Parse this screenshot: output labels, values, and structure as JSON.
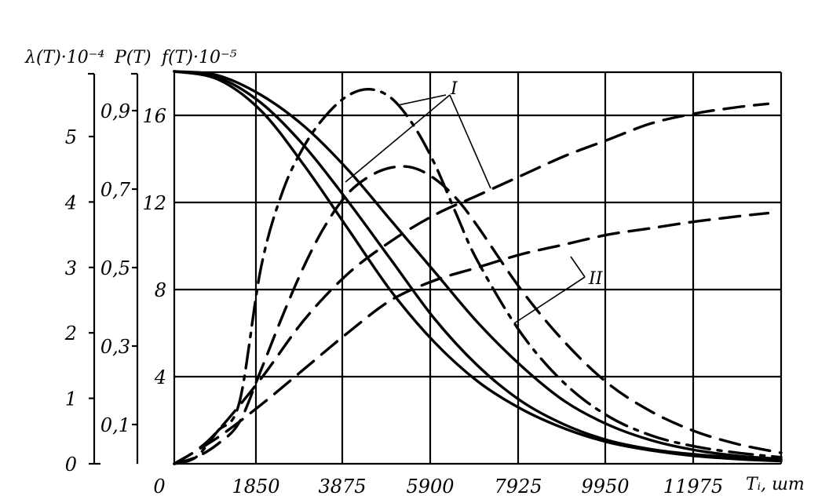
{
  "chart_data": {
    "type": "line",
    "axes": {
      "lambda": {
        "label": "λ(T)·10⁻⁴",
        "ticks": [
          0,
          1,
          2,
          3,
          4,
          5
        ]
      },
      "P": {
        "label": "P(T)",
        "ticks": [
          "0,1",
          "0,3",
          "0,5",
          "0,7",
          "0,9"
        ]
      },
      "f": {
        "label": "f(T)·10⁻⁵",
        "ticks": [
          4,
          8,
          12,
          16
        ]
      },
      "x": {
        "label": "Tᵢ, шт",
        "ticks": [
          "0",
          "1850",
          "3875",
          "5900",
          "7925",
          "9950",
          "11975"
        ],
        "range": [
          0,
          14000
        ]
      }
    },
    "annotations": [
      {
        "text": "I"
      },
      {
        "text": "II"
      }
    ],
    "series": [
      {
        "axis": "P",
        "style": "solid",
        "points": [
          [
            0,
            1.0
          ],
          [
            1000,
            0.99
          ],
          [
            2000,
            0.94
          ],
          [
            3000,
            0.86
          ],
          [
            4000,
            0.75
          ],
          [
            5000,
            0.62
          ],
          [
            6000,
            0.49
          ],
          [
            7000,
            0.36
          ],
          [
            8000,
            0.25
          ],
          [
            9000,
            0.16
          ],
          [
            10000,
            0.1
          ],
          [
            11000,
            0.06
          ],
          [
            12000,
            0.035
          ],
          [
            13000,
            0.02
          ],
          [
            14000,
            0.012
          ]
        ]
      },
      {
        "axis": "P",
        "style": "solid",
        "points": [
          [
            0,
            1.0
          ],
          [
            1000,
            0.985
          ],
          [
            2000,
            0.92
          ],
          [
            3000,
            0.81
          ],
          [
            4000,
            0.67
          ],
          [
            5000,
            0.52
          ],
          [
            6000,
            0.37
          ],
          [
            7000,
            0.25
          ],
          [
            8000,
            0.16
          ],
          [
            9000,
            0.1
          ],
          [
            10000,
            0.06
          ],
          [
            11000,
            0.037
          ],
          [
            12000,
            0.024
          ],
          [
            13000,
            0.016
          ],
          [
            14000,
            0.01
          ]
        ]
      },
      {
        "axis": "P",
        "style": "solid",
        "points": [
          [
            0,
            1.0
          ],
          [
            1000,
            0.98
          ],
          [
            2000,
            0.9
          ],
          [
            3000,
            0.76
          ],
          [
            4000,
            0.6
          ],
          [
            5000,
            0.44
          ],
          [
            6000,
            0.31
          ],
          [
            7000,
            0.21
          ],
          [
            8000,
            0.14
          ],
          [
            9000,
            0.09
          ],
          [
            10000,
            0.055
          ],
          [
            11000,
            0.034
          ],
          [
            12000,
            0.02
          ],
          [
            13000,
            0.012
          ],
          [
            14000,
            0.007
          ]
        ]
      },
      {
        "axis": "f",
        "style": "dashdot",
        "points": [
          [
            0,
            0
          ],
          [
            500,
            0.3
          ],
          [
            1000,
            1.5
          ],
          [
            1500,
            2.8
          ],
          [
            2000,
            9.0
          ],
          [
            2500,
            12.5
          ],
          [
            3000,
            14.6
          ],
          [
            3500,
            16.0
          ],
          [
            4000,
            16.9
          ],
          [
            4500,
            17.2
          ],
          [
            5000,
            16.8
          ],
          [
            5500,
            15.6
          ],
          [
            6000,
            13.8
          ],
          [
            6500,
            11.5
          ],
          [
            7000,
            9.3
          ],
          [
            8000,
            6.0
          ],
          [
            9000,
            3.7
          ],
          [
            10000,
            2.2
          ],
          [
            11000,
            1.3
          ],
          [
            12000,
            0.8
          ],
          [
            13000,
            0.5
          ],
          [
            14000,
            0.3
          ]
        ]
      },
      {
        "axis": "f",
        "style": "dashed",
        "points": [
          [
            0,
            0
          ],
          [
            500,
            0.3
          ],
          [
            1000,
            0.9
          ],
          [
            1500,
            1.9
          ],
          [
            2000,
            4.3
          ],
          [
            2500,
            6.8
          ],
          [
            3000,
            9.1
          ],
          [
            3500,
            11.0
          ],
          [
            4000,
            12.4
          ],
          [
            4500,
            13.2
          ],
          [
            5000,
            13.6
          ],
          [
            5500,
            13.6
          ],
          [
            6000,
            13.1
          ],
          [
            6500,
            12.2
          ],
          [
            7000,
            10.9
          ],
          [
            8000,
            8.0
          ],
          [
            9000,
            5.6
          ],
          [
            10000,
            3.7
          ],
          [
            11000,
            2.4
          ],
          [
            12000,
            1.5
          ],
          [
            13000,
            0.9
          ],
          [
            14000,
            0.5
          ]
        ]
      },
      {
        "axis": "lambda",
        "style": "dashed",
        "points": [
          [
            0,
            0
          ],
          [
            500,
            0.2
          ],
          [
            1000,
            0.5
          ],
          [
            2000,
            1.3
          ],
          [
            3000,
            2.2
          ],
          [
            4000,
            2.9
          ],
          [
            5000,
            3.4
          ],
          [
            6000,
            3.8
          ],
          [
            7000,
            4.1
          ],
          [
            8000,
            4.4
          ],
          [
            9000,
            4.7
          ],
          [
            10000,
            4.95
          ],
          [
            11000,
            5.2
          ],
          [
            12000,
            5.35
          ],
          [
            13000,
            5.45
          ],
          [
            13700,
            5.5
          ]
        ]
      },
      {
        "axis": "lambda",
        "style": "dashed",
        "points": [
          [
            0,
            0
          ],
          [
            1000,
            0.4
          ],
          [
            2000,
            0.9
          ],
          [
            3000,
            1.45
          ],
          [
            4000,
            2.0
          ],
          [
            5000,
            2.5
          ],
          [
            6000,
            2.8
          ],
          [
            7000,
            3.0
          ],
          [
            8000,
            3.2
          ],
          [
            9000,
            3.35
          ],
          [
            10000,
            3.5
          ],
          [
            11000,
            3.6
          ],
          [
            12000,
            3.7
          ],
          [
            13000,
            3.78
          ],
          [
            13700,
            3.83
          ]
        ]
      }
    ]
  }
}
